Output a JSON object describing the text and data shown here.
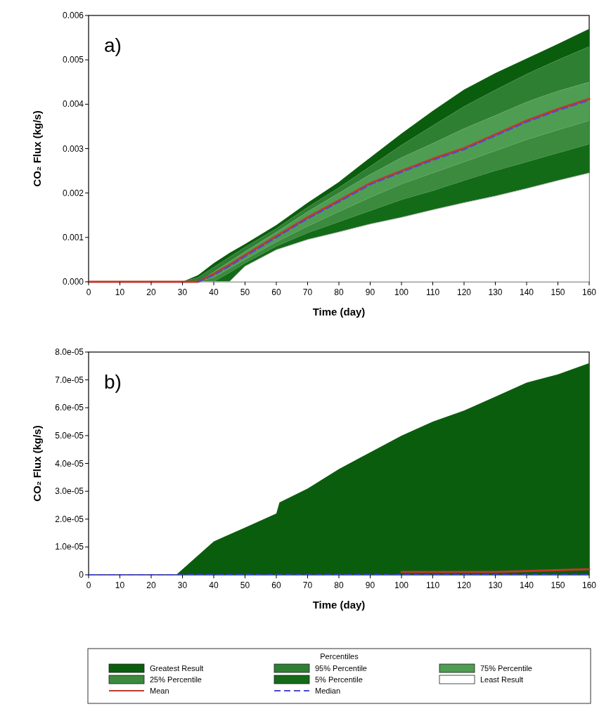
{
  "chart_data": [
    {
      "type": "area",
      "xlabel": "Time (day)",
      "ylabel": "CO₂ Flux (kg/s)",
      "annotations": [
        "a)"
      ],
      "xlim": [
        0,
        160
      ],
      "xticks": [
        0,
        10,
        20,
        30,
        40,
        50,
        60,
        70,
        80,
        90,
        100,
        110,
        120,
        130,
        140,
        150,
        160
      ],
      "ylim": [
        0,
        0.006
      ],
      "yticks": [
        {
          "value": 0,
          "label": "0.000"
        },
        {
          "value": 0.001,
          "label": "0.001"
        },
        {
          "value": 0.002,
          "label": "0.002"
        },
        {
          "value": 0.003,
          "label": "0.003"
        },
        {
          "value": 0.004,
          "label": "0.004"
        },
        {
          "value": 0.005,
          "label": "0.005"
        },
        {
          "value": 0.006,
          "label": "0.006"
        }
      ],
      "grid": false,
      "legend": false,
      "x": [
        0,
        10,
        20,
        30,
        35,
        40,
        45,
        50,
        60,
        70,
        80,
        90,
        100,
        110,
        120,
        130,
        140,
        150,
        160
      ],
      "series": [
        {
          "color": "#0b5d0e",
          "values": [
            0,
            0,
            0,
            0,
            0.00015,
            0.00042,
            0.00065,
            0.00085,
            0.00128,
            0.00178,
            0.00225,
            0.0028,
            0.00334,
            0.00385,
            0.00433,
            0.0047,
            0.00503,
            0.00536,
            0.0057
          ]
        },
        {
          "color": "#2f7f33",
          "values": [
            0,
            0,
            0,
            0,
            0.0001,
            0.00033,
            0.00056,
            0.00078,
            0.0012,
            0.00168,
            0.00212,
            0.0026,
            0.00308,
            0.00352,
            0.00395,
            0.00432,
            0.00468,
            0.005,
            0.0053
          ]
        },
        {
          "color": "#4f9d52",
          "values": [
            0,
            0,
            0,
            0,
            0,
            0.00022,
            0.00045,
            0.00068,
            0.00112,
            0.00158,
            0.002,
            0.00242,
            0.0028,
            0.00312,
            0.00345,
            0.00375,
            0.00405,
            0.0043,
            0.0045
          ]
        },
        {
          "color": "#3b8a3e",
          "values": [
            0,
            0,
            0,
            0,
            0,
            0.0001,
            0.0003,
            0.0005,
            0.0009,
            0.00125,
            0.00158,
            0.0019,
            0.0022,
            0.00245,
            0.0027,
            0.00295,
            0.0032,
            0.00342,
            0.00363
          ]
        },
        {
          "color": "#136b17",
          "values": [
            0,
            0,
            0,
            0,
            0,
            0,
            0.0002,
            0.00042,
            0.0008,
            0.0011,
            0.00135,
            0.0016,
            0.00185,
            0.00205,
            0.00228,
            0.0025,
            0.0027,
            0.0029,
            0.0031
          ]
        },
        {
          "color": "#ffffff",
          "values": [
            0,
            0,
            0,
            0,
            0,
            0,
            0,
            0.00035,
            0.00072,
            0.00095,
            0.00112,
            0.0013,
            0.00145,
            0.00162,
            0.00178,
            0.00193,
            0.0021,
            0.00228,
            0.00245
          ]
        },
        {
          "type": "line",
          "line_style": "solid",
          "color": "#c0392b",
          "values": [
            0,
            0,
            0,
            0,
            0,
            0.00018,
            0.00038,
            0.0006,
            0.00103,
            0.00145,
            0.00183,
            0.00222,
            0.0025,
            0.00277,
            0.00301,
            0.00332,
            0.00363,
            0.00389,
            0.00412
          ]
        },
        {
          "type": "line",
          "line_style": "dashed",
          "color": "#4a4ad0",
          "values": [
            null,
            null,
            null,
            null,
            0,
            0.00015,
            0.00035,
            0.00057,
            0.001,
            0.00142,
            0.0018,
            0.00219,
            0.00247,
            0.00274,
            0.00298,
            0.00329,
            0.0036,
            0.00386,
            0.00409
          ]
        }
      ]
    },
    {
      "type": "area",
      "xlabel": "Time (day)",
      "ylabel": "CO₂ Flux (kg/s)",
      "annotations": [
        "b)"
      ],
      "xlim": [
        0,
        160
      ],
      "xticks": [
        0,
        10,
        20,
        30,
        40,
        50,
        60,
        70,
        80,
        90,
        100,
        110,
        120,
        130,
        140,
        150,
        160
      ],
      "ylim": [
        0,
        8e-05
      ],
      "yticks": [
        0,
        {
          "value": 1e-05,
          "label": "1.0e-05"
        },
        {
          "value": 2e-05,
          "label": "2.0e-05"
        },
        {
          "value": 3e-05,
          "label": "3.0e-05"
        },
        {
          "value": 4e-05,
          "label": "4.0e-05"
        },
        {
          "value": 5e-05,
          "label": "5.0e-05"
        },
        {
          "value": 6e-05,
          "label": "6.0e-05"
        },
        {
          "value": 7e-05,
          "label": "7.0e-05"
        },
        {
          "value": 8e-05,
          "label": "8.0e-05"
        }
      ],
      "grid": false,
      "legend": "bottom",
      "legend_title": "Percentiles",
      "x": [
        0,
        30,
        60,
        100,
        130,
        160
      ],
      "series": [
        {
          "name": "Greatest Result",
          "color": "#0b5d0e",
          "x": [
            0,
            10,
            20,
            28,
            40,
            50,
            60,
            61,
            70,
            80,
            90,
            100,
            110,
            120,
            130,
            140,
            150,
            160
          ],
          "values": [
            0,
            0,
            0,
            0,
            1.2e-05,
            1.7e-05,
            2.2e-05,
            2.6e-05,
            3.1e-05,
            3.8e-05,
            4.4e-05,
            5e-05,
            5.5e-05,
            5.9e-05,
            6.4e-05,
            6.9e-05,
            7.2e-05,
            7.6e-05
          ]
        },
        {
          "name": "95% Percentile",
          "color": "#2f7f33",
          "values": [
            null,
            null,
            null,
            null,
            null,
            null
          ]
        },
        {
          "name": "75% Percentile",
          "color": "#4f9d52",
          "values": [
            null,
            null,
            null,
            null,
            null,
            null
          ]
        },
        {
          "name": "25% Percentile",
          "color": "#3b8a3e",
          "values": [
            null,
            null,
            null,
            null,
            null,
            null
          ]
        },
        {
          "name": "5% Percentile",
          "color": "#136b17",
          "values": [
            null,
            null,
            null,
            null,
            null,
            null
          ]
        },
        {
          "name": "Least Result",
          "color": "#ffffff",
          "values": [
            null,
            null,
            null,
            null,
            null,
            null
          ]
        },
        {
          "name": "Mean",
          "type": "line",
          "line_style": "solid",
          "color": "#c0392b",
          "values": [
            null,
            null,
            null,
            1e-06,
            1e-06,
            2e-06
          ]
        },
        {
          "name": "Median",
          "type": "line",
          "line_style": "dashed",
          "color": "#4a4ad0",
          "values": [
            0,
            0,
            0,
            0,
            0,
            0
          ]
        }
      ]
    }
  ]
}
